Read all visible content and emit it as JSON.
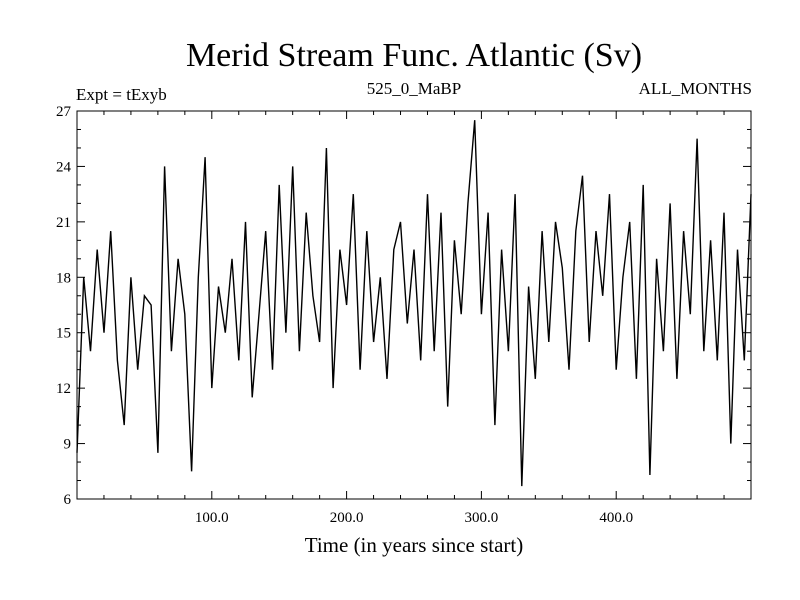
{
  "chart_data": {
    "type": "line",
    "title": "Merid Stream Func. Atlantic (Sv)",
    "subtitle_left": "Expt = tExyb",
    "subtitle_center": "525_0_MaBP",
    "subtitle_right": "ALL_MONTHS",
    "xlabel": "Time (in years since start)",
    "ylabel": "",
    "xlim": [
      0,
      500
    ],
    "ylim": [
      6,
      27
    ],
    "xticks": [
      100,
      200,
      300,
      400
    ],
    "xtick_labels": [
      "100.0",
      "200.0",
      "300.0",
      "400.0"
    ],
    "yticks": [
      6,
      9,
      12,
      15,
      18,
      21,
      24,
      27
    ],
    "ytick_labels": [
      "6",
      "9",
      "12",
      "15",
      "18",
      "21",
      "24",
      "27"
    ],
    "grid": false,
    "series": [
      {
        "x": [
          0,
          5,
          10,
          15,
          20,
          25,
          30,
          35,
          40,
          45,
          50,
          55,
          60,
          65,
          70,
          75,
          80,
          85,
          90,
          95,
          100,
          105,
          110,
          115,
          120,
          125,
          130,
          135,
          140,
          145,
          150,
          155,
          160,
          165,
          170,
          175,
          180,
          185,
          190,
          195,
          200,
          205,
          210,
          215,
          220,
          225,
          230,
          235,
          240,
          245,
          250,
          255,
          260,
          265,
          270,
          275,
          280,
          285,
          290,
          295,
          300,
          305,
          310,
          315,
          320,
          325,
          330,
          335,
          340,
          345,
          350,
          355,
          360,
          365,
          370,
          375,
          380,
          385,
          390,
          395,
          400,
          405,
          410,
          415,
          420,
          425,
          430,
          435,
          440,
          445,
          450,
          455,
          460,
          465,
          470,
          475,
          480,
          485,
          490,
          495,
          500
        ],
        "y": [
          8.5,
          18.0,
          14.0,
          19.5,
          15.0,
          20.5,
          13.5,
          10.0,
          18.0,
          13.0,
          17.0,
          16.5,
          8.5,
          24.0,
          14.0,
          19.0,
          16.0,
          7.5,
          18.0,
          24.5,
          12.0,
          17.5,
          15.0,
          19.0,
          13.5,
          21.0,
          11.5,
          16.0,
          20.5,
          13.0,
          23.0,
          15.0,
          24.0,
          14.0,
          21.5,
          17.0,
          14.5,
          25.0,
          12.0,
          19.5,
          16.5,
          22.5,
          13.0,
          20.5,
          14.5,
          18.0,
          12.5,
          19.5,
          21.0,
          15.5,
          19.5,
          13.5,
          22.5,
          14.0,
          21.5,
          11.0,
          20.0,
          16.0,
          22.0,
          26.5,
          16.0,
          21.5,
          10.0,
          19.5,
          14.0,
          22.5,
          6.7,
          17.5,
          12.5,
          20.5,
          14.5,
          21.0,
          18.5,
          13.0,
          20.5,
          23.5,
          14.5,
          20.5,
          17.0,
          22.5,
          13.0,
          18.0,
          21.0,
          12.5,
          23.0,
          7.3,
          19.0,
          14.0,
          22.0,
          12.5,
          20.5,
          16.0,
          25.5,
          14.0,
          20.0,
          13.5,
          21.5,
          9.0,
          19.5,
          13.5,
          22.5
        ]
      }
    ]
  }
}
